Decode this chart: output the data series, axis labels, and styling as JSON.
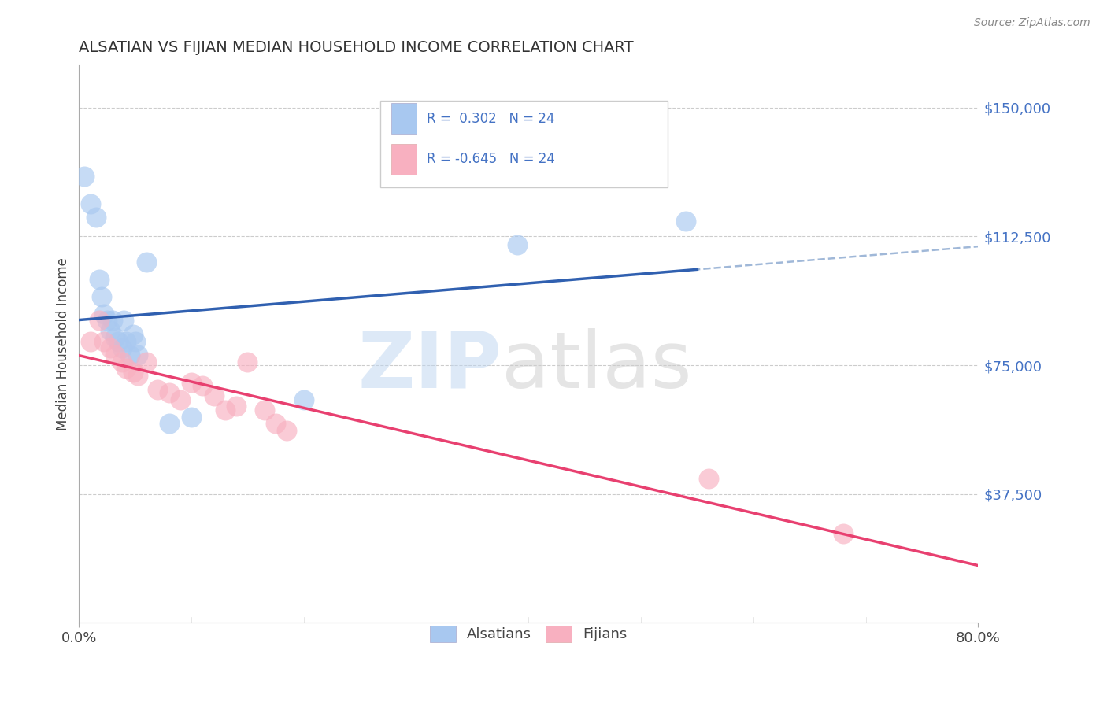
{
  "title": "ALSATIAN VS FIJIAN MEDIAN HOUSEHOLD INCOME CORRELATION CHART",
  "source_text": "Source: ZipAtlas.com",
  "ylabel": "Median Household Income",
  "xlim": [
    0.0,
    0.8
  ],
  "ylim": [
    0,
    162500
  ],
  "yticks": [
    0,
    37500,
    75000,
    112500,
    150000
  ],
  "ytick_labels": [
    "",
    "$37,500",
    "$75,000",
    "$112,500",
    "$150,000"
  ],
  "xticks": [
    0.0,
    0.8
  ],
  "xtick_labels": [
    "0.0%",
    "80.0%"
  ],
  "alsatian_color": "#A8C8F0",
  "fijian_color": "#F8B0C0",
  "alsatian_line_color": "#3060B0",
  "fijian_line_color": "#E84070",
  "dashed_line_color": "#A0B8D8",
  "legend_label1": "Alsatians",
  "legend_label2": "Fijians",
  "alsatian_x": [
    0.005,
    0.01,
    0.015,
    0.018,
    0.02,
    0.022,
    0.025,
    0.028,
    0.03,
    0.032,
    0.035,
    0.038,
    0.04,
    0.042,
    0.045,
    0.048,
    0.05,
    0.052,
    0.06,
    0.08,
    0.1,
    0.2,
    0.39,
    0.54
  ],
  "alsatian_y": [
    130000,
    122000,
    118000,
    100000,
    95000,
    90000,
    88000,
    85000,
    88000,
    83000,
    82000,
    80000,
    88000,
    82000,
    78000,
    84000,
    82000,
    78000,
    105000,
    58000,
    60000,
    65000,
    110000,
    117000
  ],
  "fijian_x": [
    0.01,
    0.018,
    0.022,
    0.028,
    0.032,
    0.038,
    0.042,
    0.048,
    0.052,
    0.06,
    0.07,
    0.08,
    0.09,
    0.1,
    0.11,
    0.12,
    0.13,
    0.14,
    0.15,
    0.165,
    0.175,
    0.185,
    0.56,
    0.68
  ],
  "fijian_y": [
    82000,
    88000,
    82000,
    80000,
    78000,
    76000,
    74000,
    73000,
    72000,
    76000,
    68000,
    67000,
    65000,
    70000,
    69000,
    66000,
    62000,
    63000,
    76000,
    62000,
    58000,
    56000,
    42000,
    26000
  ]
}
